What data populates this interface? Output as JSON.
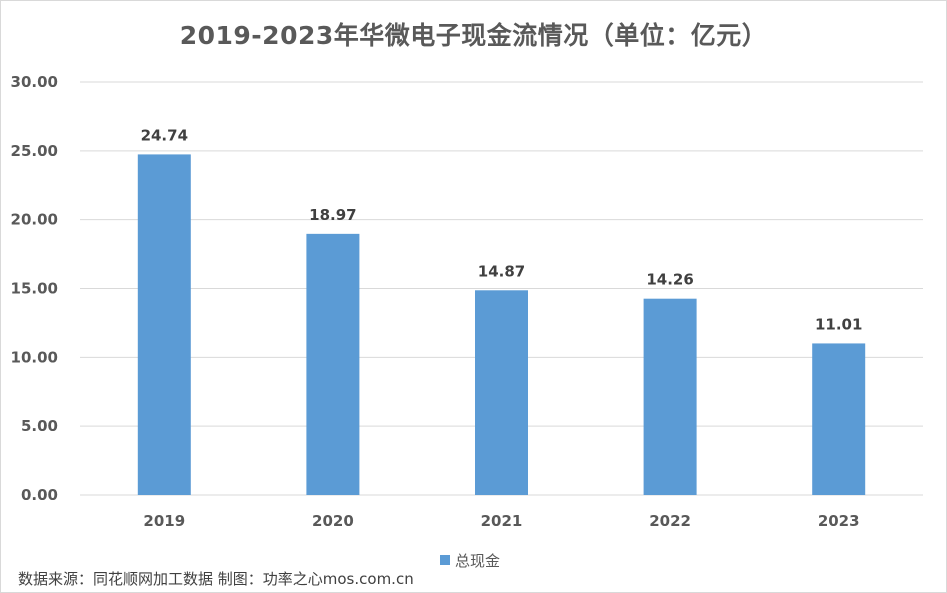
{
  "chart_data": {
    "type": "bar",
    "title": "2019-2023年华微电子现金流情况（单位：亿元）",
    "categories": [
      "2019",
      "2020",
      "2021",
      "2022",
      "2023"
    ],
    "series": [
      {
        "name": "总现金",
        "values": [
          24.74,
          18.97,
          14.87,
          14.26,
          11.01
        ]
      }
    ],
    "data_labels": [
      "24.74",
      "18.97",
      "14.87",
      "14.26",
      "11.01"
    ],
    "ylim": [
      0,
      30
    ],
    "yticks": [
      "0.00",
      "5.00",
      "10.00",
      "15.00",
      "20.00",
      "25.00",
      "30.00"
    ],
    "grid": true,
    "legend_position": "bottom",
    "colors": {
      "bar": "#5b9bd5",
      "grid": "#d9d9d9"
    }
  },
  "source_note": "数据来源：同花顺网加工数据 制图：功率之心mos.com.cn"
}
